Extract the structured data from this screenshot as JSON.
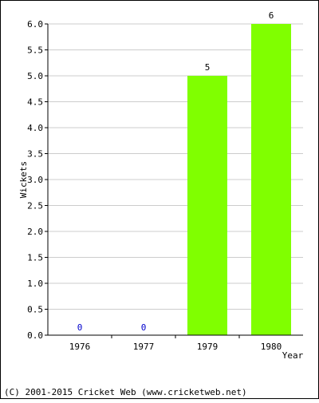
{
  "chart_data": {
    "type": "bar",
    "categories": [
      "1976",
      "1977",
      "1979",
      "1980"
    ],
    "series": [
      {
        "values": [
          0,
          0,
          5,
          6
        ],
        "color": "#80ff00"
      }
    ],
    "data_labels": [
      "0",
      "0",
      "5",
      "6"
    ],
    "data_label_colors": [
      "#0000cc",
      "#0000cc",
      "#000000",
      "#000000"
    ],
    "xlabel": "Year",
    "ylabel": "Wickets",
    "ylim": [
      0,
      6
    ],
    "yticks": [
      "0.0",
      "0.5",
      "1.0",
      "1.5",
      "2.0",
      "2.5",
      "3.0",
      "3.5",
      "4.0",
      "4.5",
      "5.0",
      "5.5",
      "6.0"
    ],
    "grid": true,
    "legend": "none"
  },
  "footer": {
    "copyright": "(C) 2001-2015 Cricket Web (www.cricketweb.net)"
  }
}
